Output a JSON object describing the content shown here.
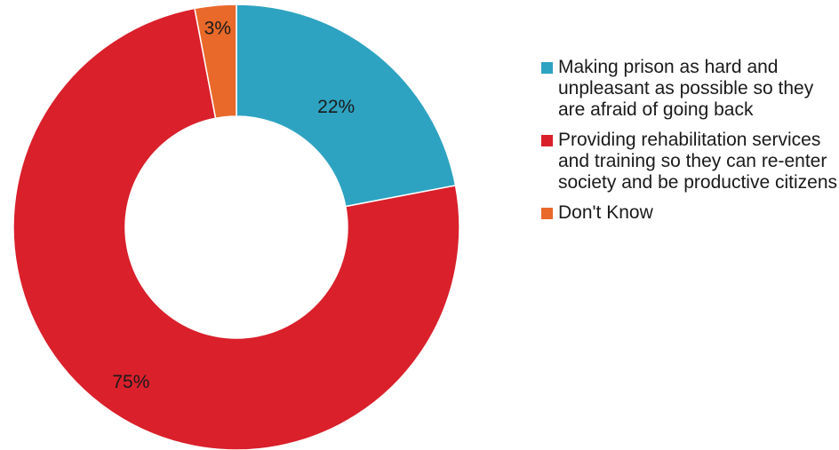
{
  "chart_data": {
    "type": "pie",
    "style": "donut",
    "categories": [
      "Making prison as hard and unpleasant as possible so they are afraid of going back",
      "Providing rehabilitation services and training so they can re-enter society and be productive citizens",
      "Don't Know"
    ],
    "values": [
      22,
      75,
      3
    ],
    "data_labels": [
      "22%",
      "75%",
      "3%"
    ],
    "colors": [
      "#2EA3C1",
      "#D9202B",
      "#E8692A"
    ],
    "legend_position": "right"
  },
  "legend": {
    "items": [
      {
        "label": "Making prison as hard and unpleasant as possible so they are afraid of going back",
        "color": "#2EA3C1"
      },
      {
        "label": "Providing rehabilitation services and training so they can re-enter society and be productive citizens",
        "color": "#D9202B"
      },
      {
        "label": "Don't Know",
        "color": "#E8692A"
      }
    ]
  }
}
